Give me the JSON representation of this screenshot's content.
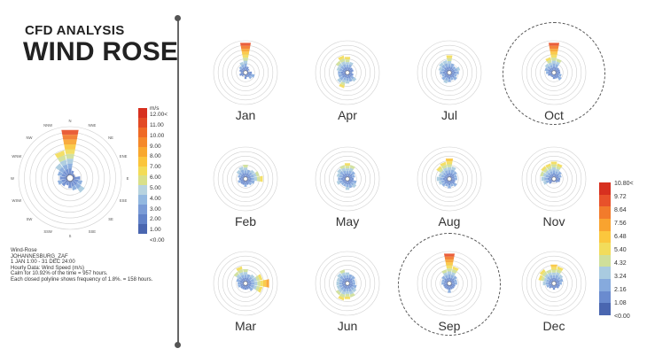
{
  "title": {
    "small": "CFD ANALYSIS",
    "big": "WIND ROSE"
  },
  "main_rose": {
    "directions": [
      "N",
      "NNE",
      "NE",
      "ENE",
      "E",
      "ESE",
      "SE",
      "SSE",
      "S",
      "SSW",
      "SW",
      "WSW",
      "W",
      "WNW",
      "NW",
      "NNW"
    ],
    "petals": [
      0.95,
      0.15,
      0.1,
      0.1,
      0.2,
      0.25,
      0.35,
      0.25,
      0.2,
      0.15,
      0.2,
      0.25,
      0.2,
      0.25,
      0.35,
      0.55
    ]
  },
  "main_legend": {
    "unit": "m/s",
    "labels": [
      "12.00<",
      "11.00",
      "10.00",
      "9.00",
      "8.00",
      "7.00",
      "6.00",
      "5.00",
      "4.00",
      "3.00",
      "2.00",
      "1.00",
      "<0.00"
    ],
    "colors": [
      "#d7301f",
      "#e34a24",
      "#ef6a25",
      "#f5892a",
      "#f9a82e",
      "#fbc53b",
      "#f3dc57",
      "#d9e08a",
      "#b7d3df",
      "#93b8e0",
      "#7a9bd6",
      "#6282c8",
      "#4a66b0"
    ]
  },
  "notes": [
    "Wind-Rose",
    "JOHANNESBURG_ZAF",
    "1 JAN 1:00 - 31 DEC 24:00",
    "Hourly Data: Wind Speed (m/s)",
    "Calm for 10.92% of the time = 957 hours.",
    "Each closed polyline shows frequency of 1.8%. = 158 hours."
  ],
  "months": [
    {
      "label": "Jan",
      "highlight": false,
      "petals": [
        0.95,
        0.2,
        0.15,
        0.1,
        0.2,
        0.3,
        0.25,
        0.15,
        0.2,
        0.1,
        0.15,
        0.2,
        0.15,
        0.2,
        0.25,
        0.35
      ]
    },
    {
      "label": "Apr",
      "highlight": false,
      "petals": [
        0.5,
        0.35,
        0.2,
        0.2,
        0.15,
        0.2,
        0.35,
        0.3,
        0.35,
        0.5,
        0.4,
        0.3,
        0.3,
        0.35,
        0.45,
        0.55
      ]
    },
    {
      "label": "Jul",
      "highlight": false,
      "petals": [
        0.55,
        0.3,
        0.25,
        0.35,
        0.3,
        0.25,
        0.3,
        0.25,
        0.3,
        0.35,
        0.3,
        0.25,
        0.3,
        0.35,
        0.4,
        0.4
      ]
    },
    {
      "label": "Oct",
      "highlight": true,
      "petals": [
        0.95,
        0.45,
        0.2,
        0.2,
        0.2,
        0.25,
        0.3,
        0.2,
        0.2,
        0.15,
        0.15,
        0.2,
        0.25,
        0.3,
        0.35,
        0.5
      ]
    },
    {
      "label": "Feb",
      "highlight": false,
      "petals": [
        0.45,
        0.3,
        0.35,
        0.45,
        0.55,
        0.3,
        0.25,
        0.2,
        0.25,
        0.2,
        0.2,
        0.25,
        0.2,
        0.25,
        0.35,
        0.4
      ]
    },
    {
      "label": "May",
      "highlight": false,
      "petals": [
        0.5,
        0.45,
        0.3,
        0.25,
        0.2,
        0.3,
        0.35,
        0.3,
        0.35,
        0.25,
        0.25,
        0.35,
        0.3,
        0.35,
        0.4,
        0.45
      ]
    },
    {
      "label": "Aug",
      "highlight": false,
      "petals": [
        0.65,
        0.4,
        0.3,
        0.25,
        0.25,
        0.2,
        0.3,
        0.25,
        0.3,
        0.25,
        0.3,
        0.35,
        0.4,
        0.35,
        0.5,
        0.55
      ]
    },
    {
      "label": "Nov",
      "highlight": false,
      "petals": [
        0.55,
        0.5,
        0.3,
        0.25,
        0.2,
        0.2,
        0.15,
        0.1,
        0.1,
        0.1,
        0.2,
        0.35,
        0.4,
        0.45,
        0.5,
        0.5
      ]
    },
    {
      "label": "Mar",
      "highlight": false,
      "petals": [
        0.45,
        0.3,
        0.35,
        0.55,
        0.75,
        0.55,
        0.3,
        0.2,
        0.2,
        0.2,
        0.2,
        0.25,
        0.25,
        0.3,
        0.45,
        0.55
      ]
    },
    {
      "label": "Jun",
      "highlight": false,
      "petals": [
        0.35,
        0.3,
        0.3,
        0.25,
        0.25,
        0.3,
        0.35,
        0.45,
        0.5,
        0.55,
        0.45,
        0.35,
        0.35,
        0.35,
        0.4,
        0.45
      ]
    },
    {
      "label": "Sep",
      "highlight": true,
      "petals": [
        0.95,
        0.55,
        0.3,
        0.25,
        0.25,
        0.2,
        0.2,
        0.2,
        0.3,
        0.2,
        0.2,
        0.2,
        0.25,
        0.25,
        0.3,
        0.45
      ]
    },
    {
      "label": "Dec",
      "highlight": false,
      "petals": [
        0.6,
        0.55,
        0.35,
        0.3,
        0.25,
        0.2,
        0.2,
        0.15,
        0.2,
        0.15,
        0.2,
        0.25,
        0.35,
        0.5,
        0.55,
        0.45
      ]
    }
  ],
  "month_legend": {
    "labels": [
      "10.80<",
      "9.72",
      "8.64",
      "7.56",
      "6.48",
      "5.40",
      "4.32",
      "3.24",
      "2.16",
      "1.08",
      "<0.00"
    ],
    "colors": [
      "#d7301f",
      "#e8512a",
      "#f27b2b",
      "#f9a32f",
      "#fbc73d",
      "#f2dc5b",
      "#cfdf9a",
      "#a9cbe0",
      "#86aadd",
      "#6a8bcf",
      "#4a66b0"
    ]
  }
}
